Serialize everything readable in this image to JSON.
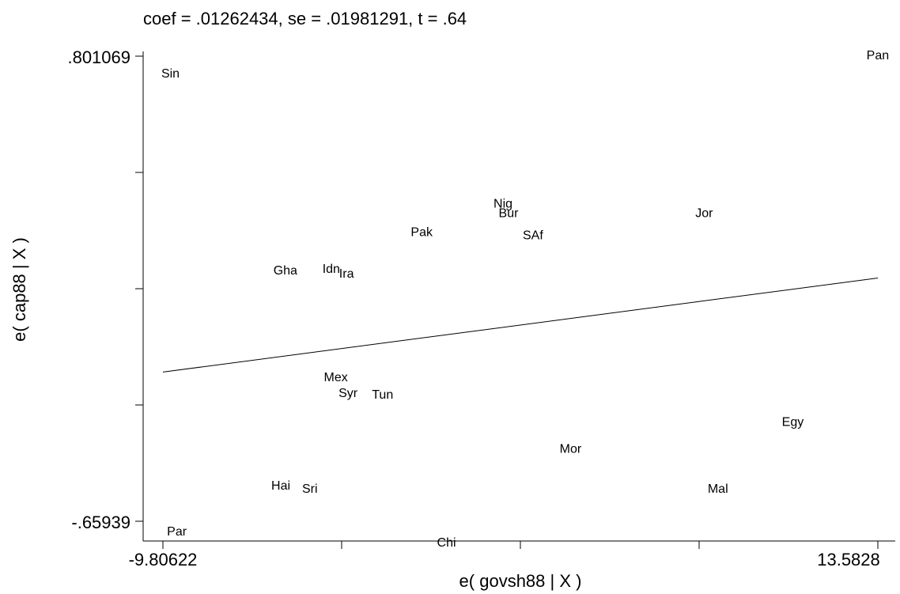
{
  "chart_data": {
    "type": "scatter",
    "title": "coef = .01262434, se = .01981291, t = .64",
    "xlabel": "e( govsh88 | X )",
    "ylabel": "e( cap88 | X )",
    "xlim": [
      -9.80622,
      13.5828
    ],
    "ylim": [
      -0.65939,
      0.801069
    ],
    "x_tick_labels": [
      "-9.80622",
      "13.5828"
    ],
    "y_tick_labels": [
      ".801069",
      "-.65939"
    ],
    "x_minor_ticks": 5,
    "y_minor_ticks": 5,
    "grid": false,
    "fit_line": {
      "slope": 0.01262434,
      "x_start": -9.80622,
      "y_start": -0.1909,
      "x_end": 13.5828,
      "y_end": 0.1044
    },
    "points": [
      {
        "label": "Sin",
        "x": -9.56,
        "y": 0.745
      },
      {
        "label": "Pan",
        "x": 13.58,
        "y": 0.801
      },
      {
        "label": "Nig",
        "x": 1.32,
        "y": 0.336
      },
      {
        "label": "Bur",
        "x": 1.5,
        "y": 0.306
      },
      {
        "label": "Jor",
        "x": 7.9,
        "y": 0.306
      },
      {
        "label": "Pak",
        "x": -1.34,
        "y": 0.246
      },
      {
        "label": "SAf",
        "x": 2.3,
        "y": 0.236
      },
      {
        "label": "Gha",
        "x": -5.8,
        "y": 0.126
      },
      {
        "label": "Idn",
        "x": -4.3,
        "y": 0.131
      },
      {
        "label": "Ira",
        "x": -3.8,
        "y": 0.116
      },
      {
        "label": "Mex",
        "x": -4.15,
        "y": -0.209
      },
      {
        "label": "Syr",
        "x": -3.75,
        "y": -0.259
      },
      {
        "label": "Tun",
        "x": -2.62,
        "y": -0.264
      },
      {
        "label": "Egy",
        "x": 10.8,
        "y": -0.349
      },
      {
        "label": "Mor",
        "x": 3.53,
        "y": -0.434
      },
      {
        "label": "Hai",
        "x": -5.95,
        "y": -0.549
      },
      {
        "label": "Sri",
        "x": -5.0,
        "y": -0.559
      },
      {
        "label": "Mal",
        "x": 8.35,
        "y": -0.559
      },
      {
        "label": "Par",
        "x": -9.35,
        "y": -0.694
      },
      {
        "label": "Chi",
        "x": -0.53,
        "y": -0.729
      }
    ]
  }
}
